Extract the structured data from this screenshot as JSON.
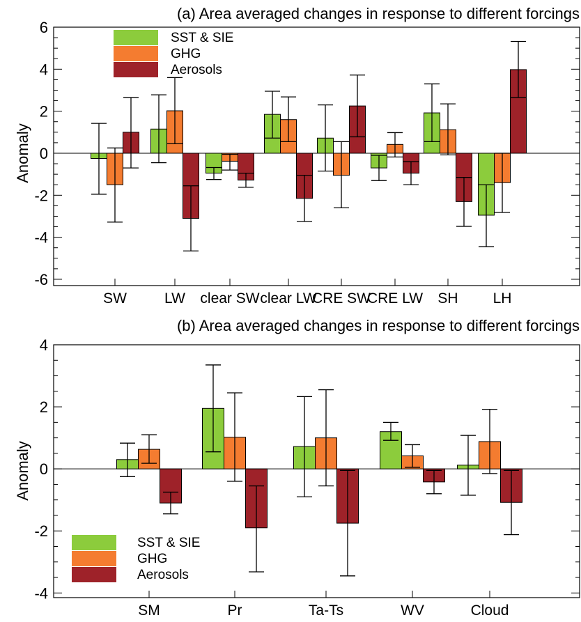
{
  "chart_data": [
    {
      "type": "bar",
      "title": "(a) Area averaged changes in response to different forcings",
      "ylabel": "Anomaly",
      "xlabel": "",
      "ylim": [
        -6.3,
        6
      ],
      "yticks": [
        -6,
        -4,
        -2,
        0,
        2,
        4,
        6
      ],
      "categories": [
        "SW",
        "LW",
        "clear SW",
        "clear LW",
        "CRE SW",
        "CRE LW",
        "SH",
        "LH"
      ],
      "legend_position": "top-left",
      "series": [
        {
          "name": "SST & SIE",
          "color": "#8ccc3c",
          "values": [
            -0.25,
            1.15,
            -0.95,
            1.85,
            0.72,
            -0.7,
            1.92,
            -2.95
          ],
          "error_low": [
            -1.95,
            -0.45,
            -1.25,
            0.72,
            -0.85,
            -1.3,
            0.55,
            -4.45
          ],
          "error_high": [
            1.42,
            2.78,
            -0.68,
            2.95,
            2.3,
            -0.1,
            3.3,
            -1.5
          ]
        },
        {
          "name": "GHG",
          "color": "#f47c30",
          "values": [
            -1.5,
            2.02,
            -0.38,
            1.6,
            -1.05,
            0.42,
            1.12,
            -1.4
          ],
          "error_low": [
            -3.28,
            0.45,
            -0.8,
            0.55,
            -2.6,
            -0.18,
            -0.08,
            -2.82
          ],
          "error_high": [
            0.25,
            3.6,
            -0.05,
            2.68,
            0.55,
            0.98,
            2.35,
            0.0
          ]
        },
        {
          "name": "Aerosols",
          "color": "#9e2229",
          "values": [
            1.0,
            -3.1,
            -1.28,
            -2.15,
            2.25,
            -0.95,
            -2.3,
            3.98
          ],
          "error_low": [
            -0.7,
            -4.65,
            -1.62,
            -3.25,
            0.78,
            -1.5,
            -3.48,
            2.65
          ],
          "error_high": [
            2.65,
            -1.55,
            -0.95,
            -1.05,
            3.72,
            -0.4,
            -1.15,
            5.32
          ]
        }
      ]
    },
    {
      "type": "bar",
      "title": "(b) Area averaged changes in response to different forcings",
      "ylabel": "Anomaly",
      "xlabel": "",
      "ylim": [
        -4.15,
        4
      ],
      "yticks": [
        -4,
        -2,
        0,
        2,
        4
      ],
      "categories": [
        "SM",
        "Pr",
        "Ta-Ts",
        "WV",
        "Cloud"
      ],
      "legend_position": "bottom-left",
      "series": [
        {
          "name": "SST & SIE",
          "color": "#8ccc3c",
          "values": [
            0.3,
            1.95,
            0.72,
            1.2,
            0.12
          ],
          "error_low": [
            -0.25,
            0.55,
            -0.9,
            0.92,
            -0.85
          ],
          "error_high": [
            0.83,
            3.35,
            2.33,
            1.5,
            1.08
          ]
        },
        {
          "name": "GHG",
          "color": "#f47c30",
          "values": [
            0.63,
            1.02,
            1.0,
            0.42,
            0.88
          ],
          "error_low": [
            0.18,
            -0.4,
            -0.55,
            0.05,
            -0.15
          ],
          "error_high": [
            1.1,
            2.45,
            2.55,
            0.78,
            1.92
          ]
        },
        {
          "name": "Aerosols",
          "color": "#9e2229",
          "values": [
            -1.1,
            -1.9,
            -1.75,
            -0.42,
            -1.08
          ],
          "error_low": [
            -1.45,
            -3.32,
            -3.45,
            -0.8,
            -2.12
          ],
          "error_high": [
            -0.75,
            -0.55,
            -0.05,
            -0.05,
            -0.05
          ]
        }
      ]
    }
  ]
}
